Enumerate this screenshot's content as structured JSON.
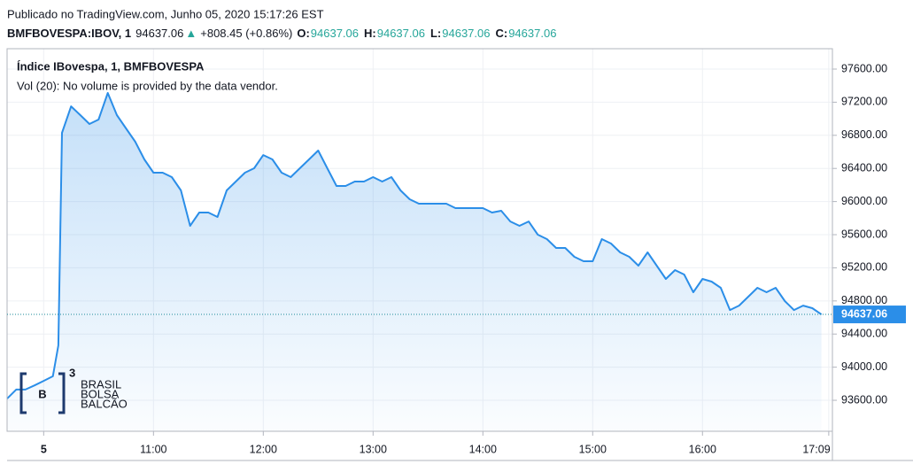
{
  "chart_data": {
    "type": "area",
    "header": "Publicado no TradingView.com, Junho 05, 2020 15:17:26 EST",
    "quote": {
      "symbol": "BMFBOVESPA:IBOV, 1",
      "price": 94637.06,
      "arrow": "▲",
      "change": "+808.45 (+0.86%)",
      "ohlc": [
        {
          "label": "O:",
          "value": 94637.06
        },
        {
          "label": "H:",
          "value": 94637.06
        },
        {
          "label": "L:",
          "value": 94637.06
        },
        {
          "label": "C:",
          "value": 94637.06
        }
      ]
    },
    "title": "Índice IBovespa, 1, BMFBOVESPA",
    "subtitle": "Vol (20): No volume is provided by the data vendor.",
    "logo": {
      "mark": "B",
      "sup": "3",
      "lines": [
        "BRASIL",
        "BOLSA",
        "BALCÃO"
      ]
    },
    "color": "#2b8ee8",
    "grid": true,
    "last_price": 94637.06,
    "xlim": [
      "09:40",
      "17:11"
    ],
    "xticks": [
      {
        "value": "10:00",
        "label": "5"
      },
      "11:00",
      "12:00",
      "13:00",
      "14:00",
      "15:00",
      "16:00",
      "17:09"
    ],
    "ylim": [
      93226,
      97846
    ],
    "yticks": [
      {
        "value": 93600,
        "label": "93600.00"
      },
      {
        "value": 94000,
        "label": "94000.00"
      },
      {
        "value": 94400,
        "label": "94400.00"
      },
      {
        "value": 94800,
        "label": "94800.00"
      },
      {
        "value": 95200,
        "label": "95200.00"
      },
      {
        "value": 95600,
        "label": "95600.00"
      },
      {
        "value": 96000,
        "label": "96000.00"
      },
      {
        "value": 96400,
        "label": "96400.00"
      },
      {
        "value": 96800,
        "label": "96800.00"
      },
      {
        "value": 97200,
        "label": "97200.00"
      },
      {
        "value": 97600,
        "label": "97600.00"
      }
    ],
    "x": [
      "09:40",
      "09:45",
      "09:50",
      "09:55",
      "10:00",
      "10:05",
      "10:08",
      "10:10",
      "10:15",
      "10:20",
      "10:25",
      "10:30",
      "10:35",
      "10:40",
      "10:45",
      "10:50",
      "10:55",
      "11:00",
      "11:05",
      "11:10",
      "11:15",
      "11:20",
      "11:25",
      "11:30",
      "11:35",
      "11:40",
      "11:45",
      "11:50",
      "11:55",
      "12:00",
      "12:05",
      "12:10",
      "12:15",
      "12:20",
      "12:25",
      "12:30",
      "12:35",
      "12:40",
      "12:45",
      "12:50",
      "12:55",
      "13:00",
      "13:05",
      "13:10",
      "13:15",
      "13:20",
      "13:25",
      "13:30",
      "13:35",
      "13:40",
      "13:45",
      "13:50",
      "13:55",
      "14:00",
      "14:05",
      "14:10",
      "14:15",
      "14:20",
      "14:25",
      "14:30",
      "14:35",
      "14:40",
      "14:45",
      "14:50",
      "14:55",
      "15:00",
      "15:05",
      "15:10",
      "15:15",
      "15:20",
      "15:25",
      "15:30",
      "15:35",
      "15:40",
      "15:45",
      "15:50",
      "15:55",
      "16:00",
      "16:05",
      "16:10",
      "16:15",
      "16:20",
      "16:25",
      "16:30",
      "16:35",
      "16:40",
      "16:45",
      "16:50",
      "16:55",
      "17:00",
      "17:05"
    ],
    "values": [
      93620,
      93730,
      93730,
      93780,
      93835,
      93890,
      94263,
      96830,
      97150,
      97044,
      96937,
      96990,
      97311,
      97044,
      96883,
      96723,
      96509,
      96349,
      96349,
      96295,
      96135,
      95707,
      95867,
      95867,
      95814,
      96135,
      96242,
      96349,
      96402,
      96562,
      96509,
      96349,
      96295,
      96402,
      96509,
      96616,
      96402,
      96188,
      96188,
      96242,
      96242,
      96295,
      96242,
      96295,
      96135,
      96028,
      95974,
      95974,
      95974,
      95974,
      95921,
      95921,
      95921,
      95921,
      95867,
      95889,
      95760,
      95707,
      95760,
      95600,
      95547,
      95440,
      95440,
      95333,
      95279,
      95279,
      95547,
      95493,
      95386,
      95333,
      95226,
      95386,
      95226,
      95065,
      95172,
      95119,
      94905,
      95065,
      95033,
      94958,
      94690,
      94744,
      94851,
      94958,
      94905,
      94958,
      94798,
      94690,
      94744,
      94712,
      94637.06
    ]
  }
}
